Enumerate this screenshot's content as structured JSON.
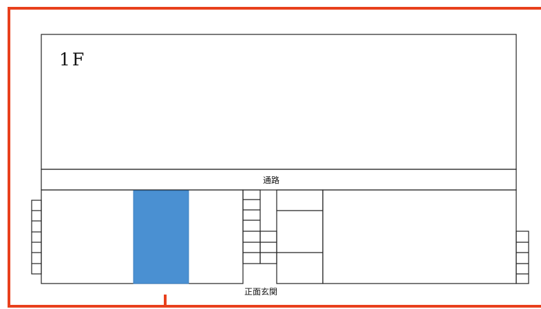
{
  "floor_plan": {
    "floor_label": "1F",
    "corridor_label": "通路",
    "entrance_label": "正面玄関",
    "highlighted_area": "highlighted-room",
    "colors": {
      "boundary": "#e8401c",
      "walls": "#222222",
      "highlight": "#4a90d2",
      "background": "#ffffff"
    }
  }
}
